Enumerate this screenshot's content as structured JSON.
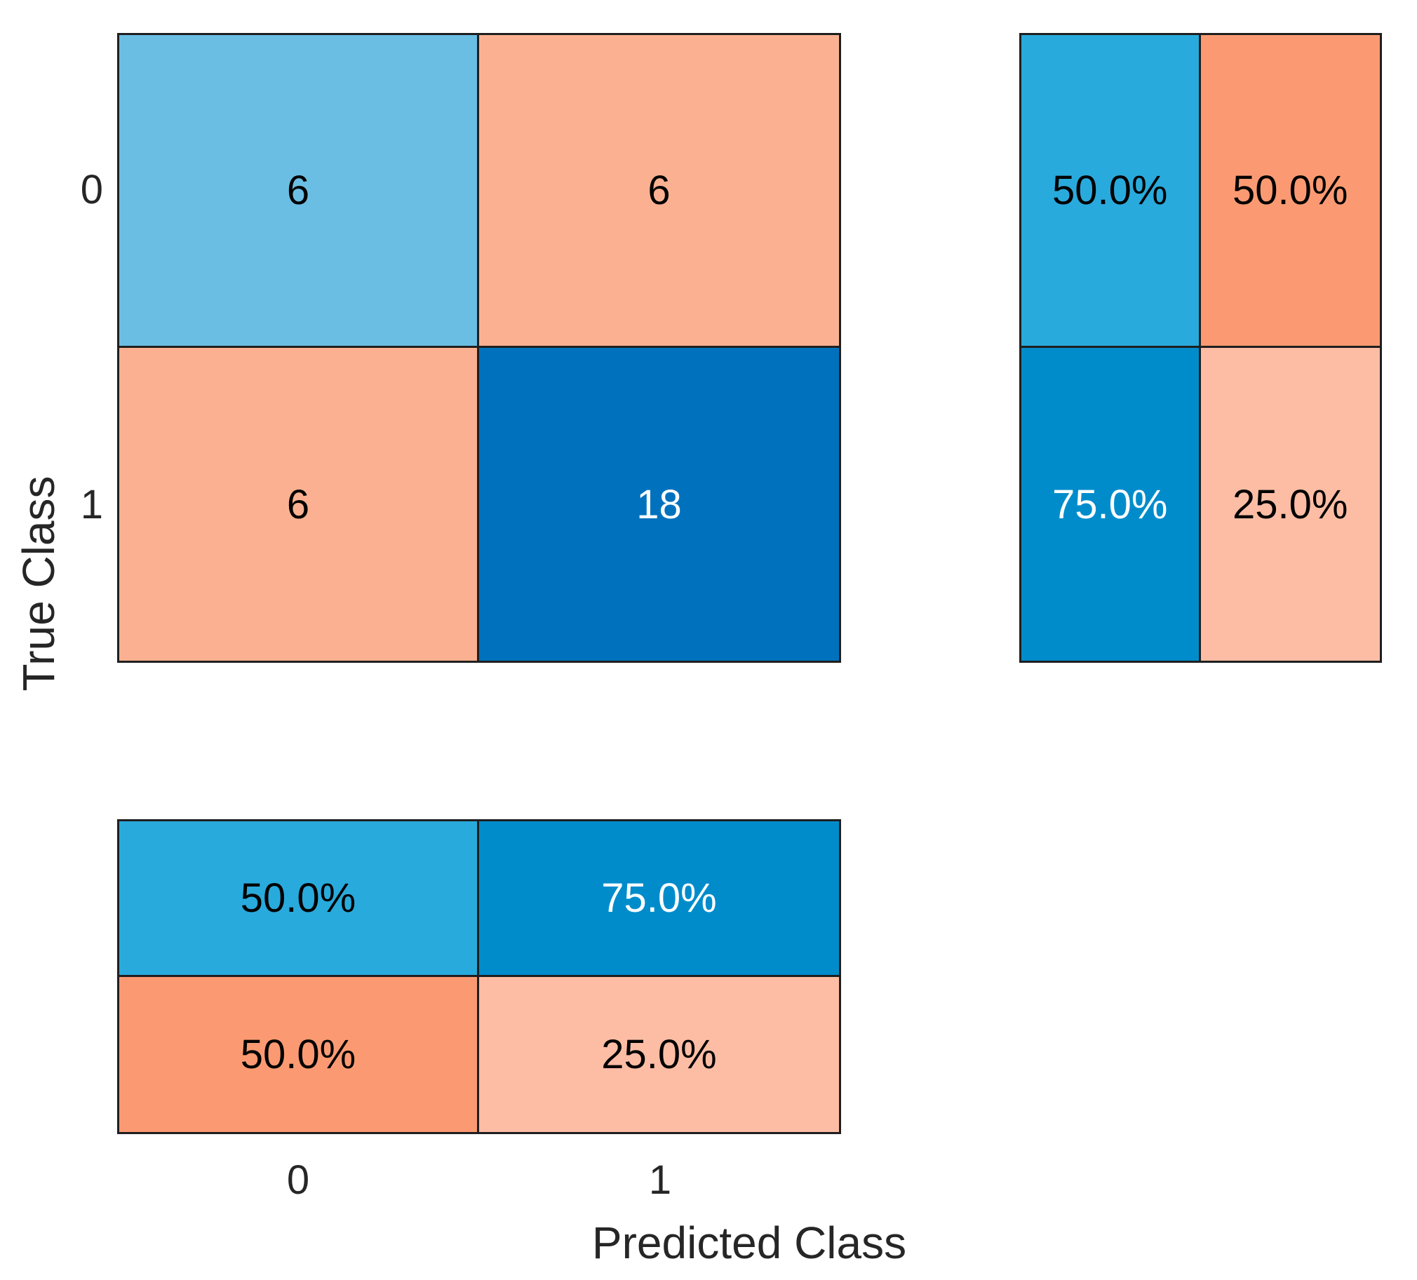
{
  "figure": {
    "background": "#ffffff",
    "grid_line_color": "#1f1f1f",
    "axis_text_color": "#262626"
  },
  "axes": {
    "xlabel": "Predicted Class",
    "ylabel": "True Class",
    "x_ticks": {
      "tick0": "0",
      "tick1": "1"
    },
    "y_ticks": {
      "tick0": "0",
      "tick1": "1"
    }
  },
  "main_matrix": {
    "cells": {
      "r0c0": {
        "value": "6",
        "bg": "#6abee3",
        "fg": "#000000"
      },
      "r0c1": {
        "value": "6",
        "bg": "#fbb191",
        "fg": "#000000"
      },
      "r1c0": {
        "value": "6",
        "bg": "#fbb191",
        "fg": "#000000"
      },
      "r1c1": {
        "value": "18",
        "bg": "#0072bd",
        "fg": "#ffffff"
      }
    }
  },
  "row_summary": {
    "cells": {
      "r0c0": {
        "value": "50.0%",
        "bg": "#29aadc",
        "fg": "#000000"
      },
      "r0c1": {
        "value": "50.0%",
        "bg": "#fb9a72",
        "fg": "#000000"
      },
      "r1c0": {
        "value": "75.0%",
        "bg": "#008ccb",
        "fg": "#ffffff"
      },
      "r1c1": {
        "value": "25.0%",
        "bg": "#fdbda5",
        "fg": "#000000"
      }
    }
  },
  "column_summary": {
    "cells": {
      "r0c0": {
        "value": "50.0%",
        "bg": "#29aadc",
        "fg": "#000000"
      },
      "r0c1": {
        "value": "75.0%",
        "bg": "#008ccb",
        "fg": "#ffffff"
      },
      "r1c0": {
        "value": "50.0%",
        "bg": "#fb9a72",
        "fg": "#000000"
      },
      "r1c1": {
        "value": "25.0%",
        "bg": "#fdbda5",
        "fg": "#000000"
      }
    }
  },
  "chart_data": {
    "type": "heatmap",
    "subtype": "confusion-matrix",
    "title": "",
    "xlabel": "Predicted Class",
    "ylabel": "True Class",
    "classes": [
      "0",
      "1"
    ],
    "matrix_rows_true_by_predicted": [
      [
        6,
        6
      ],
      [
        6,
        18
      ]
    ],
    "row_summary_position": "right",
    "row_summary_percent": [
      [
        50.0,
        50.0
      ],
      [
        75.0,
        25.0
      ]
    ],
    "column_summary_position": "bottom",
    "column_summary_percent": [
      [
        50.0,
        75.0
      ],
      [
        50.0,
        25.0
      ]
    ],
    "diagonal_base_color": "#0072bd",
    "off_diagonal_tint_color": "#fbb191",
    "grid": false,
    "legend": false
  }
}
